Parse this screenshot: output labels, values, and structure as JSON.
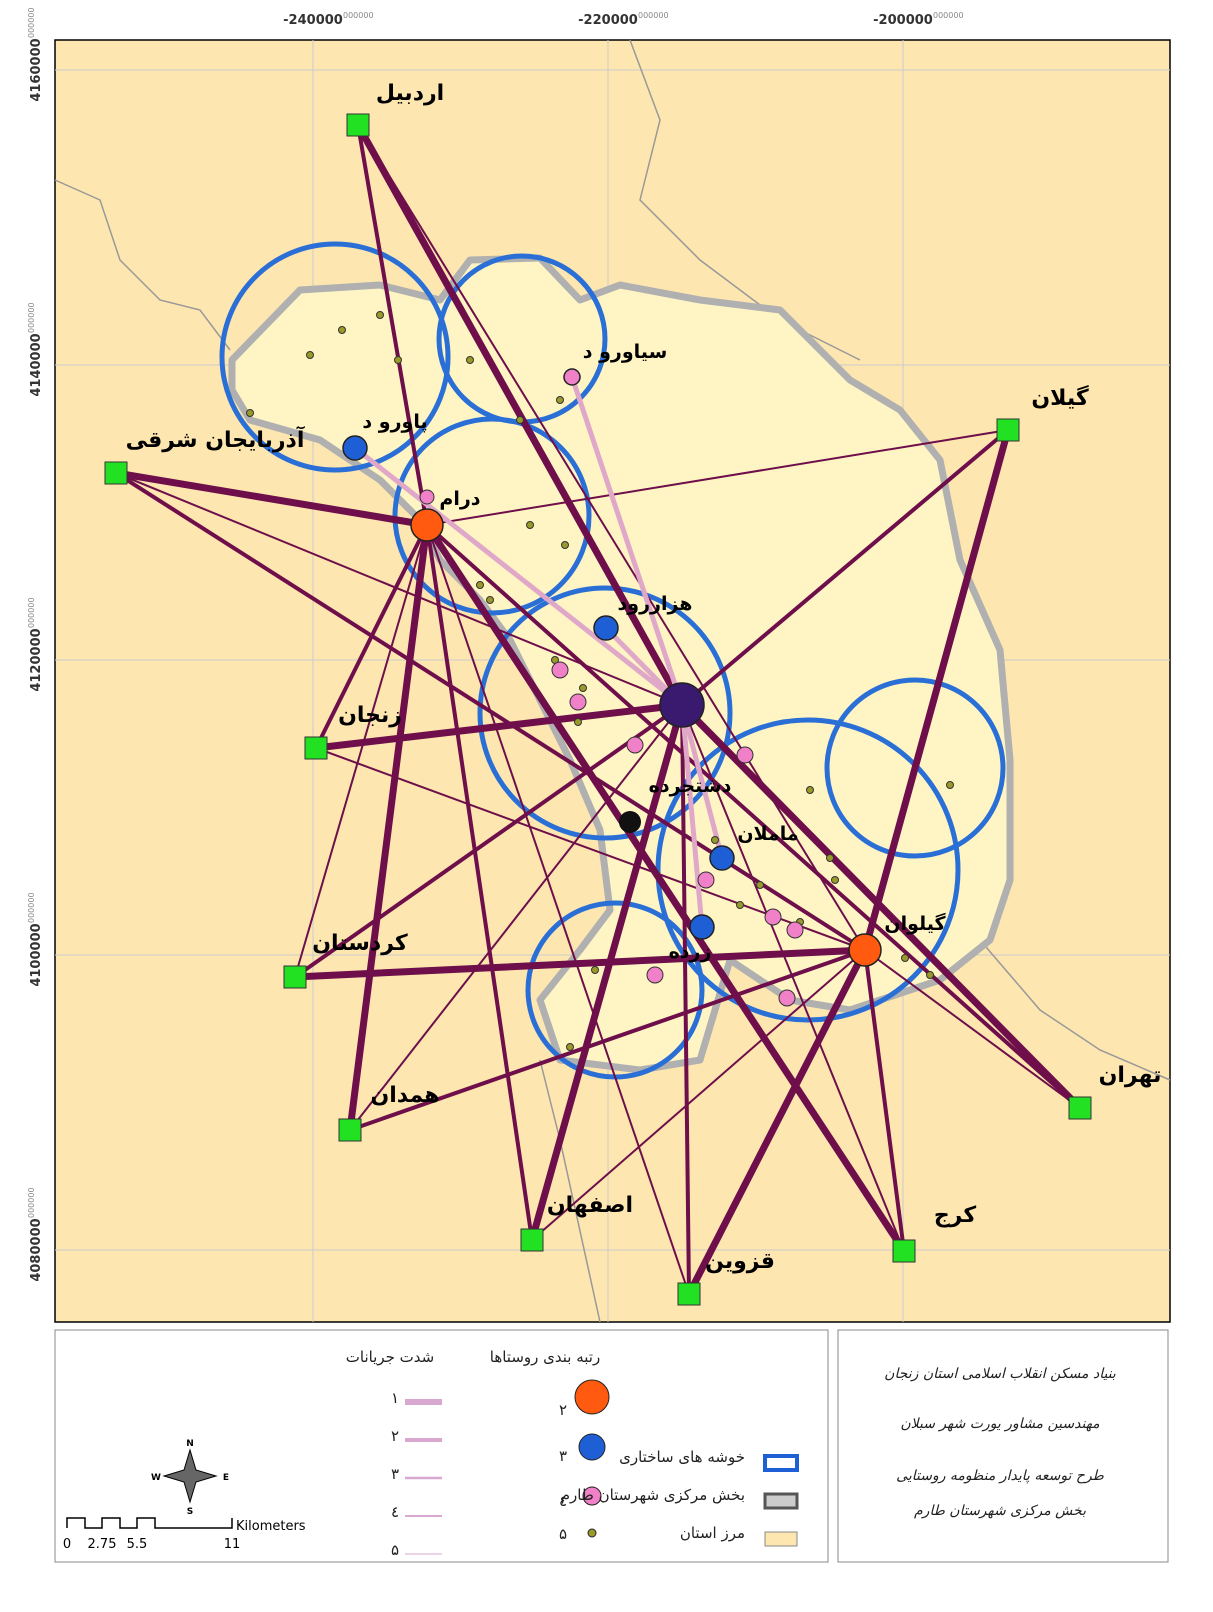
{
  "map": {
    "x_ticks": [
      {
        "label": "-240000",
        "sup": "000000"
      },
      {
        "label": "-220000",
        "sup": "000000"
      },
      {
        "label": "-200000",
        "sup": "000000"
      }
    ],
    "y_ticks": [
      {
        "label": "4160000",
        "sup": "000000"
      },
      {
        "label": "4140000",
        "sup": "000000"
      },
      {
        "label": "4120000",
        "sup": "000000"
      },
      {
        "label": "4100000",
        "sup": "000000"
      },
      {
        "label": "4080000",
        "sup": "000000"
      }
    ],
    "provinces": [
      "اردبیل",
      "گیلان",
      "آذربایجان شرقی",
      "زنجان",
      "کردستان",
      "همدان",
      "اصفهان",
      "قزوین",
      "کرج",
      "تهران"
    ],
    "villages": [
      "دشتجرده",
      "هزاررود",
      "پاورو د",
      "درام",
      "سیاورو د",
      "ماملان",
      "زرده",
      "گیلوان"
    ]
  },
  "legend": {
    "flow_title": "شدت جریانات",
    "rank_title": "رتبه بندی روستاها",
    "flow_levels": [
      "۱",
      "۲",
      "۳",
      "٤",
      "۵"
    ],
    "rank_levels": [
      "۲",
      "۳",
      "٤",
      "۵"
    ],
    "items": [
      "خوشه های ساختاری",
      "بخش مرکزی شهرستان طارم",
      "مرز استان"
    ]
  },
  "scale": {
    "ticks": [
      "0",
      "2.75",
      "5.5",
      "11"
    ],
    "unit": "Kilometers"
  },
  "compass": [
    "N",
    "E",
    "S",
    "W"
  ],
  "info": [
    "بنیاد مسکن انقلاب اسلامی استان زنجان",
    "مهندسین مشاور یورت شهر سبلان",
    "طرح توسعه پایدار منظومه روستایی",
    "بخش مرکزی شهرستان طارم"
  ]
}
